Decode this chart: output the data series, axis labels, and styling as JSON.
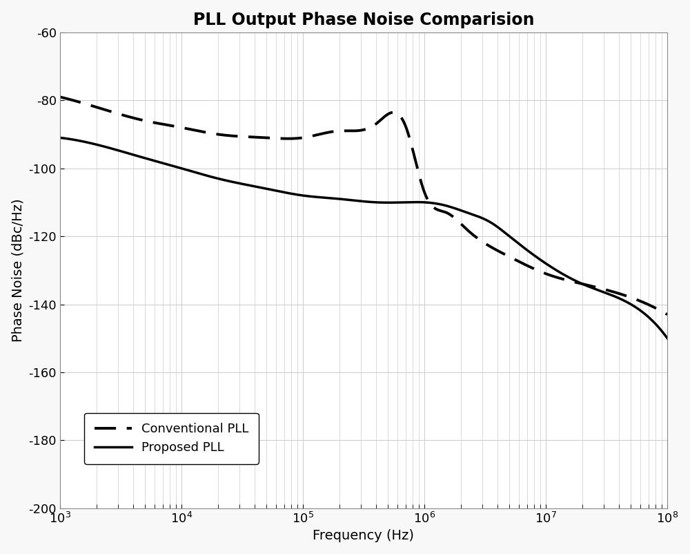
{
  "title": "PLL Output Phase Noise Comparision",
  "xlabel": "Frequency (Hz)",
  "ylabel": "Phase Noise (dBc/Hz)",
  "xlim": [
    1000.0,
    100000000.0
  ],
  "ylim": [
    -200,
    -60
  ],
  "yticks": [
    -200,
    -180,
    -160,
    -140,
    -120,
    -100,
    -80,
    -60
  ],
  "background_color": "#f8f8f8",
  "plot_bg_color": "#ffffff",
  "grid_color": "#cccccc",
  "line_color": "#000000",
  "title_fontsize": 17,
  "label_fontsize": 14,
  "tick_fontsize": 13,
  "legend_fontsize": 13,
  "conv_pll_log_freq": [
    3.0,
    3.3,
    3.7,
    4.0,
    4.3,
    4.7,
    5.0,
    5.3,
    5.6,
    5.85,
    6.0,
    6.18,
    6.35,
    6.7,
    7.0,
    7.3,
    7.7,
    8.0
  ],
  "conv_pll_noise": [
    -79,
    -82,
    -86,
    -88,
    -90,
    -91,
    -91,
    -89,
    -87,
    -88,
    -107,
    -113,
    -118,
    -126,
    -131,
    -134,
    -138,
    -143
  ],
  "prop_pll_log_freq": [
    3.0,
    3.3,
    3.7,
    4.0,
    4.3,
    4.7,
    5.0,
    5.3,
    5.6,
    5.85,
    6.0,
    6.18,
    6.35,
    6.55,
    6.7,
    7.0,
    7.3,
    7.7,
    8.0
  ],
  "prop_pll_noise": [
    -91,
    -93,
    -97,
    -100,
    -103,
    -106,
    -108,
    -109,
    -110,
    -110,
    -110,
    -111,
    -113,
    -116,
    -120,
    -128,
    -134,
    -140,
    -150
  ]
}
